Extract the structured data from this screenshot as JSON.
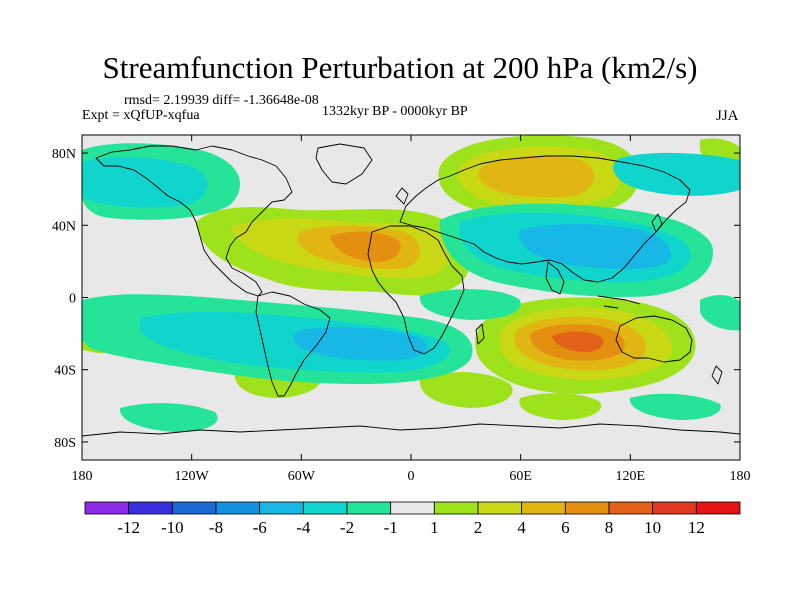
{
  "title": "Streamfunction Perturbation at 200 hPa (km2/s)",
  "stats": "rmsd= 2.19939 diff= -1.36648e-08",
  "experiment": "Expt = xQfUP-xqfua",
  "period": "1332kyr BP - 0000kyr BP",
  "season": "JJA",
  "map": {
    "lat_ticks": [
      "80N",
      "40N",
      "0",
      "40S",
      "80S"
    ],
    "lon_ticks": [
      "180",
      "120W",
      "60W",
      "0",
      "60E",
      "120E",
      "180"
    ],
    "lat_values": [
      80,
      40,
      0,
      -40,
      -80
    ],
    "lon_values": [
      -180,
      -120,
      -60,
      0,
      60,
      120,
      180
    ]
  },
  "colorbar": {
    "labels": [
      "-12",
      "-10",
      "-8",
      "-6",
      "-4",
      "-2",
      "-1",
      "1",
      "2",
      "4",
      "6",
      "8",
      "10",
      "12"
    ],
    "colors": [
      "#8c2be8",
      "#3a2fdc",
      "#1c6ad6",
      "#1492e0",
      "#17b8e6",
      "#10d5cc",
      "#25e49a",
      "#e8e8e8",
      "#9ee21b",
      "#c8d814",
      "#e2b612",
      "#e48f10",
      "#e2621a",
      "#e03a22",
      "#e61414"
    ]
  },
  "colors": {
    "background_neutral": "#e8e8e8",
    "coastline": "#000000"
  }
}
